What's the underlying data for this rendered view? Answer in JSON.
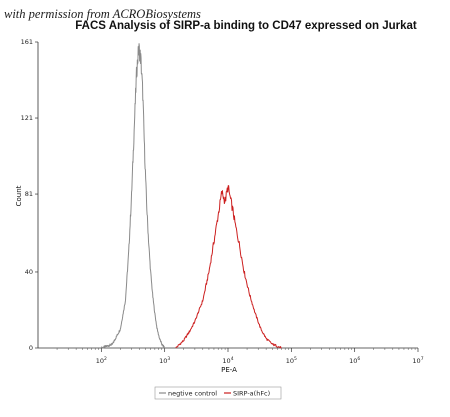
{
  "watermark": "with permission from ACROBiosystems",
  "chart_data": {
    "type": "line",
    "title": "FACS Analysis of SIRP-a binding to CD47 expressed on Jurkat",
    "xlabel": "PE-A",
    "ylabel": "Count",
    "x_scale": "log",
    "xlim": [
      10,
      10000000
    ],
    "x_ticks": [
      {
        "value": 100,
        "base": "10",
        "exp": "2"
      },
      {
        "value": 1000,
        "base": "10",
        "exp": "3"
      },
      {
        "value": 10000,
        "base": "10",
        "exp": "4"
      },
      {
        "value": 100000,
        "base": "10",
        "exp": "5"
      },
      {
        "value": 1000000,
        "base": "10",
        "exp": "6"
      },
      {
        "value": 10000000,
        "base": "10",
        "exp": "7"
      }
    ],
    "ylim": [
      0,
      161
    ],
    "y_ticks": [
      0,
      40,
      81,
      121,
      161
    ],
    "legend_position": "bottom",
    "series": [
      {
        "name": "negtive control",
        "color": "#8a8a8a",
        "x": [
          100,
          150,
          200,
          240,
          270,
          300,
          330,
          360,
          390,
          420,
          450,
          480,
          520,
          560,
          600,
          650,
          700,
          760,
          830,
          900,
          1000
        ],
        "y": [
          0,
          2,
          10,
          25,
          50,
          80,
          115,
          145,
          158,
          152,
          135,
          105,
          75,
          55,
          40,
          27,
          18,
          10,
          5,
          2,
          0
        ]
      },
      {
        "name": "SIRP-a(hFc)",
        "color": "#cc1f1f",
        "x": [
          1500,
          2000,
          2500,
          3000,
          4000,
          5000,
          6000,
          7000,
          8000,
          9000,
          10000,
          11000,
          12000,
          13000,
          15000,
          18000,
          22000,
          27000,
          33000,
          40000,
          50000,
          60000,
          70000
        ],
        "y": [
          0,
          4,
          9,
          14,
          25,
          40,
          56,
          70,
          82,
          77,
          85,
          78,
          72,
          65,
          55,
          40,
          28,
          18,
          10,
          5,
          2,
          1,
          0
        ]
      }
    ]
  }
}
